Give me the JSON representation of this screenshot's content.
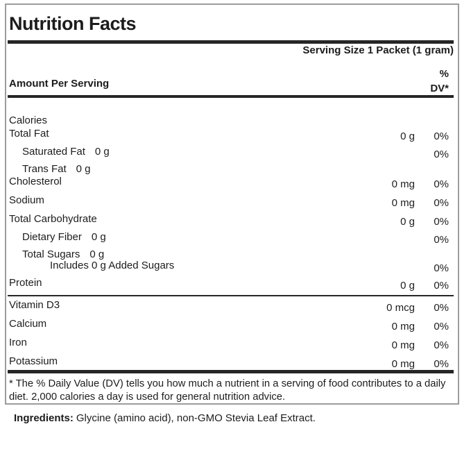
{
  "label": {
    "title": "Nutrition Facts",
    "serving_size": "Serving Size 1 Packet (1 gram)",
    "column_header": "Amount Per Serving",
    "dv_header": {
      "line1": "%",
      "line2": "DV*"
    },
    "rows": [
      {
        "name": "Calories",
        "inline_amount": "",
        "amount": "",
        "dv": ""
      },
      {
        "name": "Total Fat",
        "inline_amount": "",
        "amount": "0 g",
        "dv": "0%"
      },
      {
        "name": "Saturated Fat",
        "inline_amount": "0 g",
        "amount": "",
        "dv": "0%"
      },
      {
        "name": "Trans Fat",
        "inline_amount": "0 g",
        "amount": "",
        "dv": ""
      },
      {
        "name": "Cholesterol",
        "inline_amount": "",
        "amount": "0 mg",
        "dv": "0%"
      },
      {
        "name": "Sodium",
        "inline_amount": "",
        "amount": "0 mg",
        "dv": "0%"
      },
      {
        "name": "Total Carbohydrate",
        "inline_amount": "",
        "amount": "0 g",
        "dv": "0%"
      },
      {
        "name": "Dietary Fiber",
        "inline_amount": "0 g",
        "amount": "",
        "dv": "0%"
      },
      {
        "name": "Total Sugars",
        "inline_amount": "0 g",
        "amount": "",
        "dv": ""
      },
      {
        "name": "Includes 0 g Added Sugars",
        "inline_amount": "",
        "amount": "",
        "dv": "0%"
      },
      {
        "name": "Protein",
        "inline_amount": "",
        "amount": "0 g",
        "dv": "0%"
      },
      {
        "name": "Vitamin D3",
        "inline_amount": "",
        "amount": "0 mcg",
        "dv": "0%"
      },
      {
        "name": "Calcium",
        "inline_amount": "",
        "amount": "0 mg",
        "dv": "0%"
      },
      {
        "name": "Iron",
        "inline_amount": "",
        "amount": "0 mg",
        "dv": "0%"
      },
      {
        "name": "Potassium",
        "inline_amount": "",
        "amount": "0 mg",
        "dv": "0%"
      }
    ],
    "footnote": "* The % Daily Value (DV) tells you how much a nutrient in a serving of food contributes to a daily diet. 2,000 calories a day is used for general nutrition advice."
  },
  "ingredients": {
    "label": "Ingredients:",
    "text": "Glycine (amino acid), non-GMO Stevia Leaf Extract."
  },
  "colors": {
    "text": "#1c1c1c",
    "rule": "#262626",
    "box_border": "#9c9c9c",
    "background": "#ffffff"
  }
}
